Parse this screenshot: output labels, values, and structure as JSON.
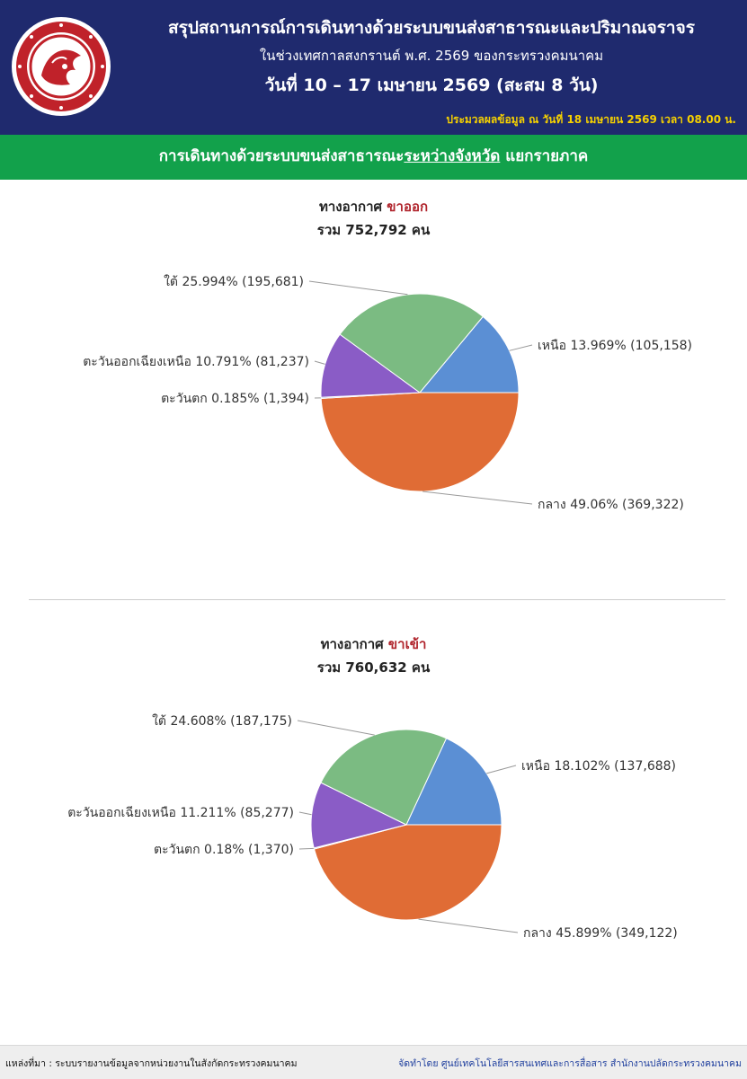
{
  "header": {
    "line1": "สรุปสถานการณ์การเดินทางด้วยระบบขนส่งสาธารณะและปริมาณจราจร",
    "line2": "ในช่วงเทศกาลสงกรานต์ พ.ศ. 2569 ของกระทรวงคมนาคม",
    "line3": "วันที่  10 – 17 เมษายน 2569 (สะสม 8 วัน)",
    "as_of": "ประมวลผลข้อมูล ณ วันที่ 18 เมษายน 2569 เวลา 08.00 น."
  },
  "section": {
    "title_prefix": "การเดินทางด้วยระบบขนส่งสาธารณะ",
    "title_underlined": "ระหว่างจังหวัด",
    "title_suffix": " แยกรายภาค"
  },
  "colors": {
    "header_bg": "#1f2a6e",
    "section_bg": "#12a14b",
    "highlight": "#b0242c",
    "north": "#5b8fd4",
    "south": "#7bbb82",
    "northeast": "#8a5cc6",
    "west": "#3b6ec2",
    "central": "#e06c35"
  },
  "chart_data": [
    {
      "type": "pie",
      "title_prefix": "ทางอากาศ",
      "title_highlight": "ขาออก",
      "subtitle": "รวม 752,792 คน",
      "slices": [
        {
          "name": "เหนือ",
          "percent": "13.969%",
          "value": 105158,
          "value_label": "105,158"
        },
        {
          "name": "กลาง",
          "percent": "49.06%",
          "value": 369322,
          "value_label": "369,322"
        },
        {
          "name": "ตะวันตก",
          "percent": "0.185%",
          "value": 1394,
          "value_label": "1,394"
        },
        {
          "name": "ตะวันออกเฉียงเหนือ",
          "percent": "10.791%",
          "value": 81237,
          "value_label": "81,237"
        },
        {
          "name": "ใต้",
          "percent": "25.994%",
          "value": 195681,
          "value_label": "195,681"
        }
      ]
    },
    {
      "type": "pie",
      "title_prefix": "ทางอากาศ",
      "title_highlight": "ขาเข้า",
      "subtitle": "รวม 760,632 คน",
      "slices": [
        {
          "name": "เหนือ",
          "percent": "18.102%",
          "value": 137688,
          "value_label": "137,688"
        },
        {
          "name": "กลาง",
          "percent": "45.899%",
          "value": 349122,
          "value_label": "349,122"
        },
        {
          "name": "ตะวันตก",
          "percent": "0.18%",
          "value": 1370,
          "value_label": "1,370"
        },
        {
          "name": "ตะวันออกเฉียงเหนือ",
          "percent": "11.211%",
          "value": 85277,
          "value_label": "85,277"
        },
        {
          "name": "ใต้",
          "percent": "24.608%",
          "value": 187175,
          "value_label": "187,175"
        }
      ]
    }
  ],
  "footer": {
    "source": "แหล่งที่มา : ระบบรายงานข้อมูลจากหน่วยงานในสังกัดกระทรวงคมนาคม",
    "credit": "จัดทำโดย ศูนย์เทคโนโลยีสารสนเทศและการสื่อสาร สำนักงานปลัดกระทรวงคมนาคม"
  }
}
